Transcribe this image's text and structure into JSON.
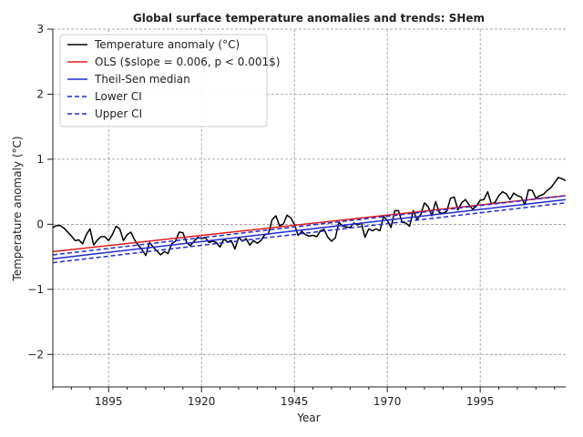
{
  "chart_data": {
    "type": "line",
    "title": "Global surface temperature anomalies and trends: SHem",
    "xlabel": "Year",
    "ylabel": "Temperature anomaly (°C)",
    "xlim": [
      1880,
      2018
    ],
    "ylim": [
      -2.5,
      3
    ],
    "x_ticks": [
      1895,
      1920,
      1945,
      1970,
      1995
    ],
    "y_ticks": [
      -2,
      -1,
      0,
      1,
      2,
      3
    ],
    "grid": true,
    "legend_position": "top-left",
    "series": [
      {
        "name": "Temperature anomaly (°C)",
        "color": "#000000",
        "style": "solid",
        "x": [
          1880,
          1881,
          1882,
          1883,
          1884,
          1885,
          1886,
          1887,
          1888,
          1889,
          1890,
          1891,
          1892,
          1893,
          1894,
          1895,
          1896,
          1897,
          1898,
          1899,
          1900,
          1901,
          1902,
          1903,
          1904,
          1905,
          1906,
          1907,
          1908,
          1909,
          1910,
          1911,
          1912,
          1913,
          1914,
          1915,
          1916,
          1917,
          1918,
          1919,
          1920,
          1921,
          1922,
          1923,
          1924,
          1925,
          1926,
          1927,
          1928,
          1929,
          1930,
          1931,
          1932,
          1933,
          1934,
          1935,
          1936,
          1937,
          1938,
          1939,
          1940,
          1941,
          1942,
          1943,
          1944,
          1945,
          1946,
          1947,
          1948,
          1949,
          1950,
          1951,
          1952,
          1953,
          1954,
          1955,
          1956,
          1957,
          1958,
          1959,
          1960,
          1961,
          1962,
          1963,
          1964,
          1965,
          1966,
          1967,
          1968,
          1969,
          1970,
          1971,
          1972,
          1973,
          1974,
          1975,
          1976,
          1977,
          1978,
          1979,
          1980,
          1981,
          1982,
          1983,
          1984,
          1985,
          1986,
          1987,
          1988,
          1989,
          1990,
          1991,
          1992,
          1993,
          1994,
          1995,
          1996,
          1997,
          1998,
          1999,
          2000,
          2001,
          2002,
          2003,
          2004,
          2005,
          2006,
          2007,
          2008,
          2009,
          2010,
          2011,
          2012,
          2013,
          2014,
          2015,
          2016,
          2017,
          2018
        ],
        "y": [
          -0.05,
          -0.02,
          -0.02,
          -0.06,
          -0.12,
          -0.18,
          -0.25,
          -0.24,
          -0.3,
          -0.16,
          -0.07,
          -0.32,
          -0.24,
          -0.19,
          -0.19,
          -0.25,
          -0.16,
          -0.03,
          -0.07,
          -0.25,
          -0.16,
          -0.12,
          -0.24,
          -0.32,
          -0.39,
          -0.48,
          -0.28,
          -0.35,
          -0.41,
          -0.47,
          -0.42,
          -0.45,
          -0.3,
          -0.26,
          -0.12,
          -0.13,
          -0.28,
          -0.33,
          -0.26,
          -0.2,
          -0.22,
          -0.2,
          -0.28,
          -0.26,
          -0.28,
          -0.35,
          -0.23,
          -0.27,
          -0.25,
          -0.38,
          -0.2,
          -0.26,
          -0.22,
          -0.32,
          -0.25,
          -0.29,
          -0.25,
          -0.16,
          -0.15,
          0.07,
          0.13,
          -0.02,
          0.0,
          0.14,
          0.1,
          0.0,
          -0.17,
          -0.11,
          -0.16,
          -0.18,
          -0.17,
          -0.19,
          -0.1,
          -0.08,
          -0.2,
          -0.26,
          -0.21,
          0.03,
          -0.03,
          -0.04,
          -0.05,
          0.02,
          -0.01,
          0.02,
          -0.2,
          -0.07,
          -0.1,
          -0.07,
          -0.1,
          0.12,
          0.06,
          -0.05,
          0.21,
          0.21,
          0.03,
          0.02,
          -0.03,
          0.21,
          0.07,
          0.15,
          0.33,
          0.27,
          0.13,
          0.35,
          0.18,
          0.17,
          0.2,
          0.4,
          0.42,
          0.22,
          0.33,
          0.38,
          0.3,
          0.23,
          0.28,
          0.37,
          0.38,
          0.5,
          0.31,
          0.34,
          0.44,
          0.5,
          0.47,
          0.38,
          0.48,
          0.44,
          0.42,
          0.3,
          0.53,
          0.52,
          0.4,
          0.44,
          0.46,
          0.52,
          0.56,
          0.64,
          0.72,
          0.7,
          0.67
        ]
      },
      {
        "name": "OLS ($slope = 0.006, p < 0.001$)",
        "color": "#e31a1c",
        "style": "solid",
        "x": [
          1880,
          2018
        ],
        "y": [
          -0.42,
          0.44
        ]
      },
      {
        "name": "Theil-Sen median",
        "color": "#1f2bd6",
        "style": "solid",
        "x": [
          1880,
          2018
        ],
        "y": [
          -0.53,
          0.38
        ]
      },
      {
        "name": "Lower CI",
        "color": "#1f2bd6",
        "style": "dashed",
        "x": [
          1880,
          2018
        ],
        "y": [
          -0.59,
          0.33
        ]
      },
      {
        "name": "Upper CI",
        "color": "#1f2bd6",
        "style": "dashed",
        "x": [
          1880,
          2018
        ],
        "y": [
          -0.47,
          0.44
        ]
      }
    ]
  }
}
